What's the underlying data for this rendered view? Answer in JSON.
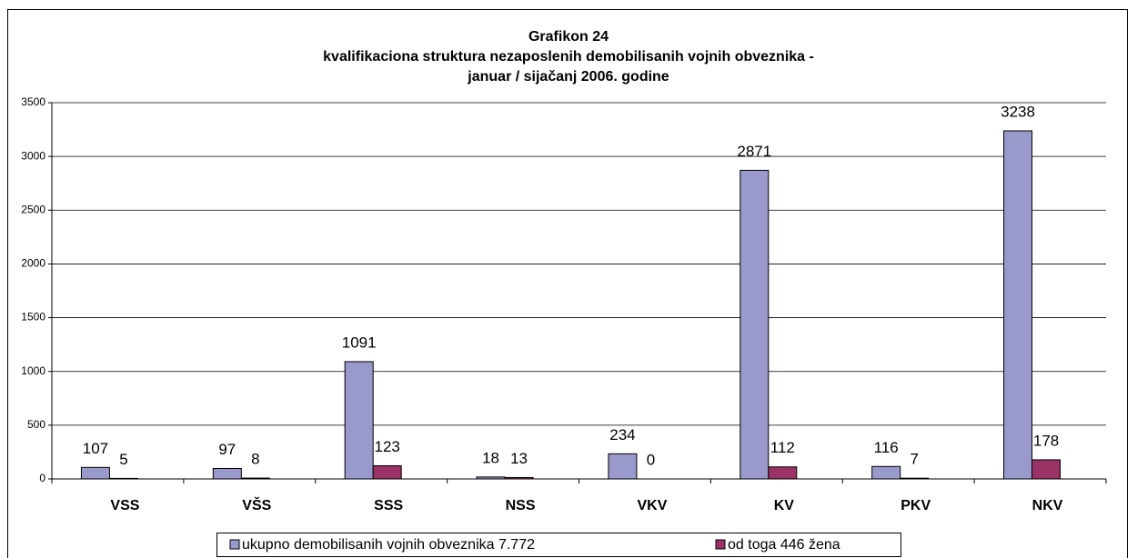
{
  "chart_data": {
    "type": "bar",
    "title": "Grafikon 24",
    "subtitle": [
      "kvalifikaciona struktura nezaposlenih demobilisanih vojnih obveznika -",
      "januar / sijačanj 2006. godine"
    ],
    "categories": [
      "VSS",
      "VŠS",
      "SSS",
      "NSS",
      "VKV",
      "KV",
      "PKV",
      "NKV"
    ],
    "series": [
      {
        "name": "ukupno demobilisanih vojnih obveznika 7.772",
        "color": "#9999cc",
        "values": [
          107,
          97,
          1091,
          18,
          234,
          2871,
          116,
          3238
        ]
      },
      {
        "name": "od toga 446 žena",
        "color": "#993366",
        "values": [
          5,
          8,
          123,
          13,
          0,
          112,
          7,
          178
        ]
      }
    ],
    "ylim": [
      0,
      3500
    ],
    "yticks": [
      0,
      500,
      1000,
      1500,
      2000,
      2500,
      3000,
      3500
    ],
    "grid": true,
    "legend": "bottom"
  }
}
